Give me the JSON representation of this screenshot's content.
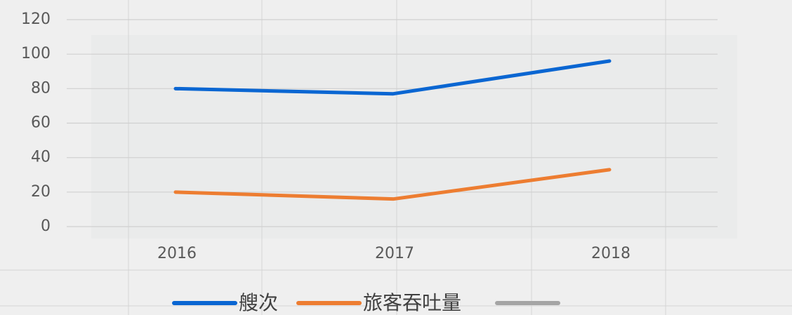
{
  "chart_data": {
    "type": "line",
    "categories": [
      "2016",
      "2017",
      "2018"
    ],
    "series": [
      {
        "name": "艘次",
        "color": "#0a66d2",
        "values": [
          80,
          77,
          96
        ]
      },
      {
        "name": "旅客吞吐量",
        "color": "#ed7d31",
        "values": [
          20,
          16,
          33
        ]
      }
    ],
    "ylim": [
      0,
      120
    ],
    "yticks": [
      0,
      20,
      40,
      60,
      80,
      100,
      120
    ],
    "grid": true
  }
}
